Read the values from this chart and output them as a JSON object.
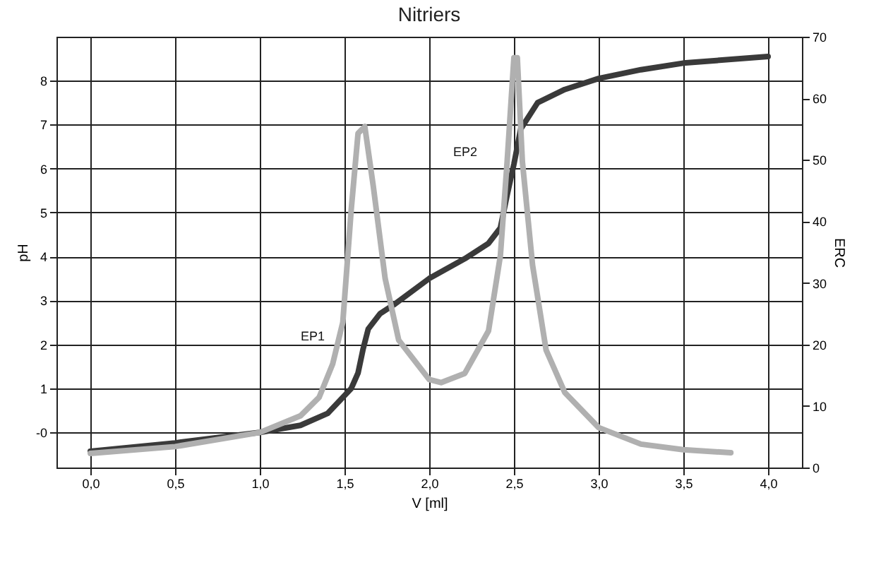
{
  "chart_data": {
    "type": "line",
    "title": "Nitriers",
    "xlabel": "V [ml]",
    "ylabel": "pH",
    "y2label": "ERC",
    "xlim": [
      -0.2,
      4.2
    ],
    "xticks": [
      {
        "value": 0,
        "label": "0,0"
      },
      {
        "value": 0.5,
        "label": "0,5"
      },
      {
        "value": 1,
        "label": "1,0"
      },
      {
        "value": 1.5,
        "label": "1,5"
      },
      {
        "value": 2,
        "label": "2,0"
      },
      {
        "value": 2.5,
        "label": "2,5"
      },
      {
        "value": 3,
        "label": "3,0"
      },
      {
        "value": 3.5,
        "label": "3,5"
      },
      {
        "value": 4,
        "label": "4,0"
      }
    ],
    "ylim": [
      -0.8,
      9
    ],
    "yticks": [
      {
        "value": 0,
        "label": "-0"
      },
      1,
      2,
      3,
      4,
      5,
      6,
      7,
      8
    ],
    "y2lim": [
      0,
      70
    ],
    "y2ticks": [
      0,
      10,
      20,
      30,
      40,
      50,
      60,
      70
    ],
    "grid": true,
    "line_style": "solid",
    "marker": "none",
    "series": [
      {
        "color": "#3a3a3a",
        "x": [
          0,
          0.5,
          1,
          1.24,
          1.4,
          1.54,
          1.58,
          1.61,
          1.64,
          1.71,
          1.79,
          2,
          2.21,
          2.35,
          2.42,
          2.46,
          2.5,
          2.54,
          2.64,
          2.8,
          3,
          3.25,
          3.5,
          4
        ],
        "values": [
          -0.43,
          -0.24,
          0,
          0.16,
          0.43,
          1,
          1.35,
          1.9,
          2.35,
          2.7,
          2.9,
          3.5,
          3.95,
          4.3,
          4.65,
          5.4,
          6.1,
          6.9,
          7.5,
          7.8,
          8.05,
          8.25,
          8.4,
          8.55
        ]
      },
      {
        "color": "#b0b0b0",
        "axis": "y2",
        "x": [
          0,
          0.5,
          1,
          1.24,
          1.35,
          1.43,
          1.49,
          1.54,
          1.58,
          1.62,
          1.67,
          1.74,
          1.82,
          2,
          2.07,
          2.21,
          2.35,
          2.42,
          2.46,
          2.5,
          2.52,
          2.55,
          2.61,
          2.69,
          2.8,
          3,
          3.25,
          3.5,
          3.78
        ],
        "values": [
          2.3,
          3.4,
          5.7,
          8.4,
          11.4,
          16.8,
          23.6,
          42,
          54.3,
          55.4,
          45.7,
          30.7,
          20.7,
          14.3,
          13.8,
          15.3,
          22.2,
          34.4,
          49.7,
          66.6,
          66.6,
          49.7,
          32.9,
          19.1,
          12.2,
          6.5,
          3.8,
          2.9,
          2.4
        ]
      }
    ],
    "annotations": [
      {
        "text": "EP1",
        "x": 1.6,
        "y": 1.9
      },
      {
        "text": "EP2",
        "x": 2.5,
        "y": 6.1
      }
    ]
  }
}
